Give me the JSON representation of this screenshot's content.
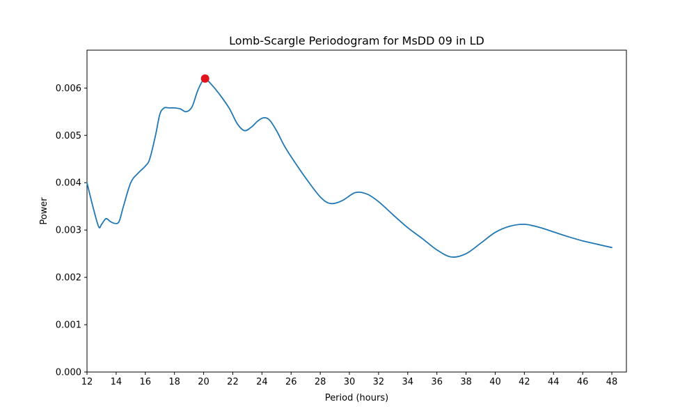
{
  "chart_data": {
    "type": "line",
    "title": "Lomb-Scargle Periodogram for MsDD 09 in LD",
    "xlabel": "Period (hours)",
    "ylabel": "Power",
    "xlim": [
      12,
      49
    ],
    "ylim": [
      0,
      0.0068
    ],
    "xticks": [
      12,
      14,
      16,
      18,
      20,
      22,
      24,
      26,
      28,
      30,
      32,
      34,
      36,
      38,
      40,
      42,
      44,
      46,
      48
    ],
    "yticks": [
      "0.000",
      "0.001",
      "0.002",
      "0.003",
      "0.004",
      "0.005",
      "0.006"
    ],
    "grid": false,
    "series": [
      {
        "color": "#1f77b4",
        "x": [
          12.0,
          12.4,
          12.8,
          13.0,
          13.3,
          13.6,
          13.9,
          14.2,
          14.5,
          15.0,
          15.5,
          16.0,
          16.3,
          16.7,
          17.0,
          17.3,
          17.6,
          18.0,
          18.4,
          18.8,
          19.2,
          19.6,
          20.0,
          20.3,
          20.8,
          21.3,
          21.8,
          22.3,
          22.8,
          23.3,
          23.7,
          24.1,
          24.5,
          25.0,
          25.5,
          26.0,
          27.0,
          28.0,
          28.7,
          29.5,
          30.4,
          31.2,
          32.0,
          33.0,
          34.0,
          35.0,
          36.0,
          37.0,
          38.0,
          39.0,
          40.0,
          41.0,
          42.0,
          43.0,
          44.0,
          45.0,
          46.0,
          47.0,
          48.0
        ],
        "values": [
          0.004,
          0.0035,
          0.00307,
          0.00312,
          0.00324,
          0.00318,
          0.00314,
          0.00318,
          0.0035,
          0.004,
          0.0042,
          0.00435,
          0.0045,
          0.005,
          0.00545,
          0.00558,
          0.00558,
          0.00558,
          0.00556,
          0.0055,
          0.0056,
          0.00595,
          0.00618,
          0.00615,
          0.00598,
          0.00578,
          0.00555,
          0.00525,
          0.0051,
          0.00518,
          0.0053,
          0.00537,
          0.00533,
          0.0051,
          0.0048,
          0.00455,
          0.0041,
          0.0037,
          0.00356,
          0.00362,
          0.00379,
          0.00376,
          0.0036,
          0.00332,
          0.00305,
          0.00282,
          0.00258,
          0.00243,
          0.0025,
          0.00272,
          0.00295,
          0.00308,
          0.00312,
          0.00306,
          0.00296,
          0.00286,
          0.00277,
          0.0027,
          0.00263
        ]
      }
    ],
    "peak": {
      "x": 20.1,
      "y": 0.0062,
      "color": "#e3111b"
    }
  }
}
